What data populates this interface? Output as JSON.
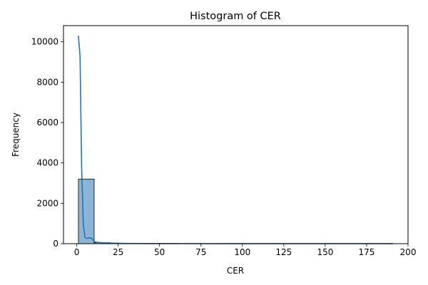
{
  "chart_data": {
    "type": "bar",
    "title": "Histogram of CER",
    "xlabel": "CER",
    "ylabel": "Frequency",
    "xlim": [
      -8,
      200
    ],
    "ylim": [
      0,
      10800
    ],
    "xticks": [
      0,
      25,
      50,
      75,
      100,
      125,
      150,
      175,
      200
    ],
    "yticks": [
      0,
      2000,
      4000,
      6000,
      8000,
      10000
    ],
    "grid": false,
    "bins": {
      "edges": [
        1,
        10.5,
        20,
        29.5,
        39,
        48.5,
        58,
        67.5,
        77,
        86.5,
        96,
        105.5,
        115,
        124.5,
        134,
        143.5,
        153,
        162.5,
        172,
        181.5,
        191
      ],
      "counts": [
        3200,
        50,
        12,
        6,
        4,
        3,
        2,
        2,
        1,
        1,
        1,
        1,
        1,
        1,
        0,
        1,
        0,
        0,
        0,
        1
      ],
      "color": "#8db4d5",
      "edge_color": "#000000"
    },
    "kde": {
      "color": "#1f77b4",
      "x": [
        1,
        2,
        3,
        4,
        5,
        6,
        7,
        8,
        9,
        10,
        11,
        12,
        14,
        16,
        20,
        25,
        30,
        40,
        60,
        100,
        150,
        191
      ],
      "y": [
        10300,
        9300,
        3600,
        900,
        320,
        260,
        280,
        290,
        270,
        170,
        90,
        70,
        55,
        45,
        30,
        20,
        12,
        8,
        5,
        3,
        2,
        1
      ]
    }
  }
}
